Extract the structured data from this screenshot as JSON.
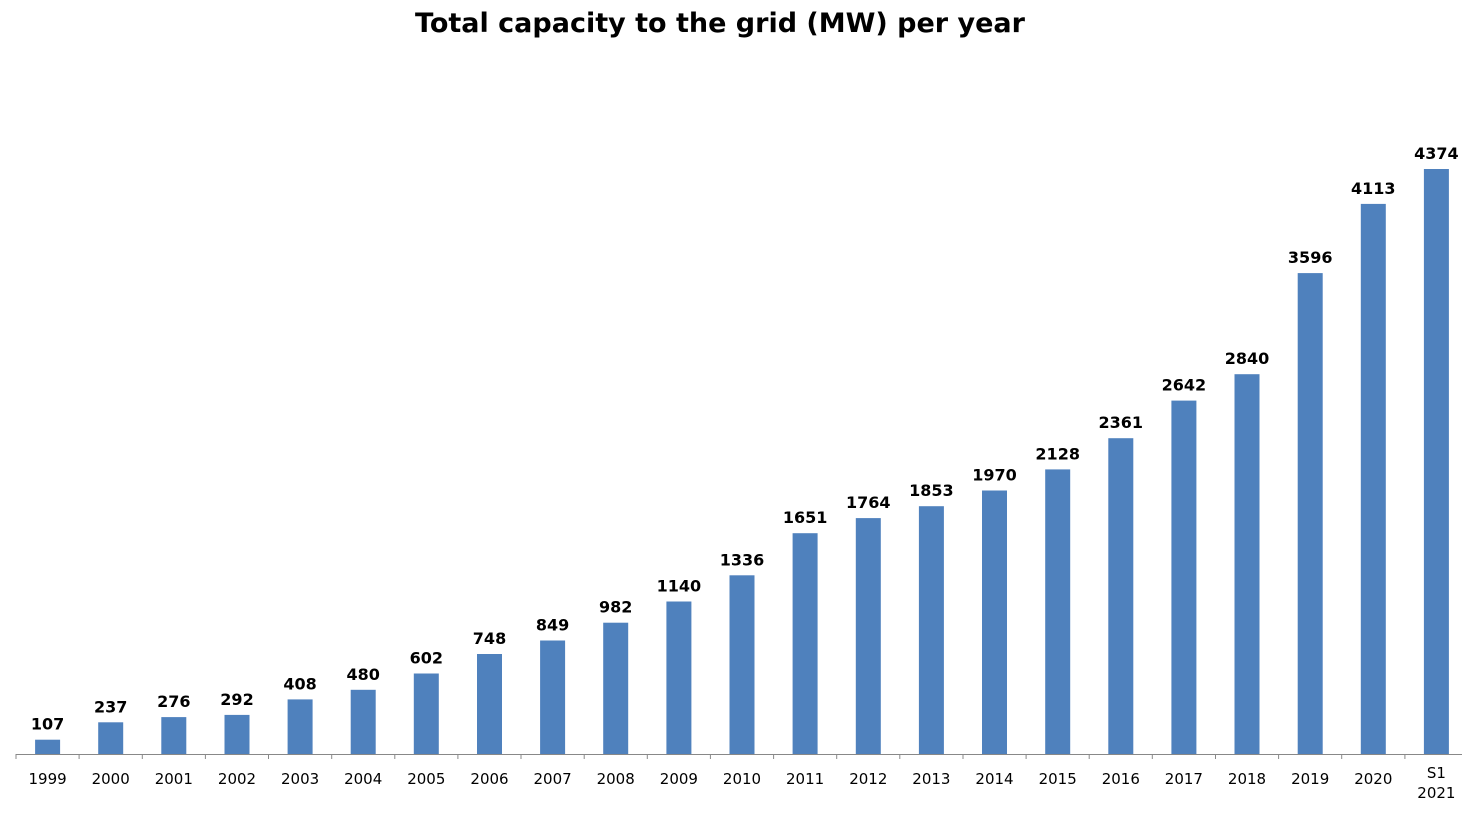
{
  "chart_data": {
    "type": "bar",
    "title": "Total capacity to the grid (MW) per year",
    "xlabel": "",
    "ylabel": "",
    "categories": [
      "1999",
      "2000",
      "2001",
      "2002",
      "2003",
      "2004",
      "2005",
      "2006",
      "2007",
      "2008",
      "2009",
      "2010",
      "2011",
      "2012",
      "2013",
      "2014",
      "2015",
      "2016",
      "2017",
      "2018",
      "2019",
      "2020",
      "S1 2021"
    ],
    "values": [
      107,
      237,
      276,
      292,
      408,
      480,
      602,
      748,
      849,
      982,
      1140,
      1336,
      1651,
      1764,
      1853,
      1970,
      2128,
      2361,
      2642,
      2840,
      3596,
      4113,
      4374
    ],
    "ylim": [
      0,
      4374
    ],
    "grid": false,
    "legend": "none",
    "bar_color": "#4F81BD",
    "axis_color": "#888888"
  }
}
